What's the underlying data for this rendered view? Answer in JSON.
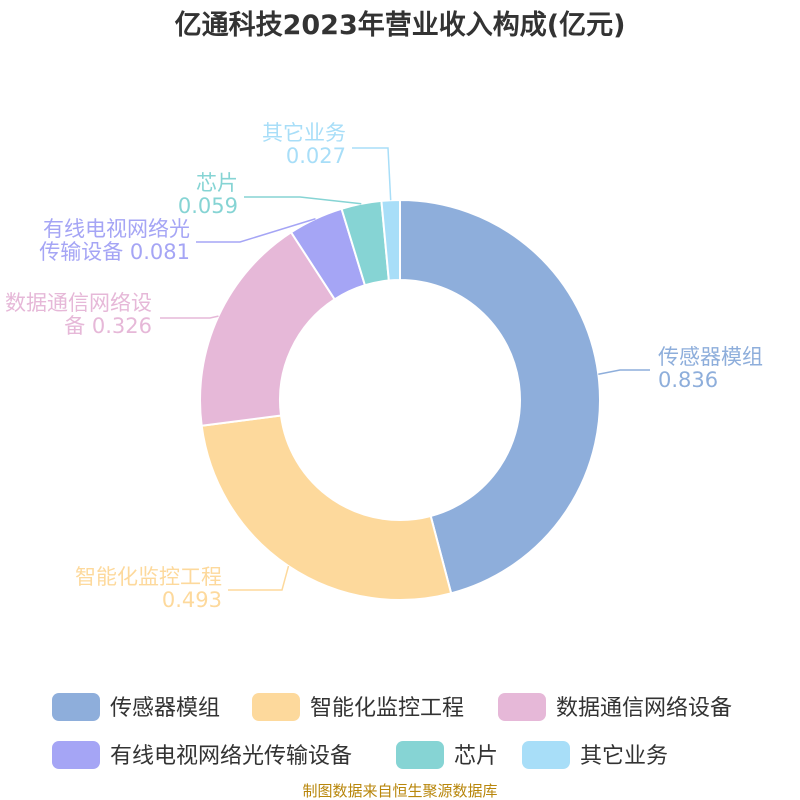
{
  "chart_data": {
    "type": "pie",
    "title": "亿通科技2023年营业收入构成(亿元)",
    "unit": "亿元",
    "donut": true,
    "slices": [
      {
        "name": "传感器模组",
        "value": 0.836,
        "value_label": "0.836",
        "color": "#8eaedb",
        "label_lines": [
          "传感器模组",
          "0.836"
        ]
      },
      {
        "name": "智能化监控工程",
        "value": 0.493,
        "value_label": "0.493",
        "color": "#fdd99c",
        "label_lines": [
          "智能化监控工程",
          "0.493"
        ]
      },
      {
        "name": "数据通信网络设备",
        "value": 0.326,
        "value_label": "0.326",
        "color": "#e6b8d8",
        "label_lines": [
          "数据通信网络设",
          "备 0.326"
        ]
      },
      {
        "name": "有线电视网络光传输设备",
        "value": 0.081,
        "value_label": "0.081",
        "color": "#a5a5f5",
        "label_lines": [
          "有线电视网络光",
          "传输设备 0.081"
        ]
      },
      {
        "name": "芯片",
        "value": 0.059,
        "value_label": "0.059",
        "color": "#86d4d4",
        "label_lines": [
          "芯片",
          "0.059"
        ]
      },
      {
        "name": "其它业务",
        "value": 0.027,
        "value_label": "0.027",
        "color": "#a8def8",
        "label_lines": [
          "其它业务",
          "0.027"
        ]
      }
    ],
    "legend_position": "bottom"
  },
  "footer": {
    "source": "制图数据来自恒生聚源数据库"
  }
}
